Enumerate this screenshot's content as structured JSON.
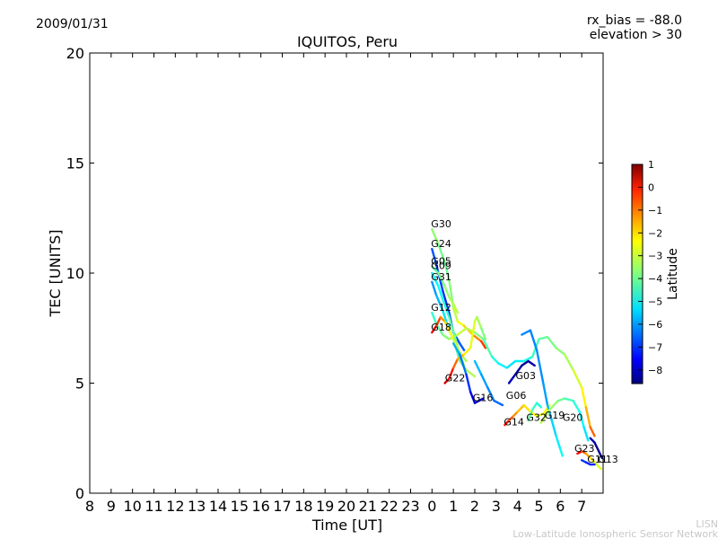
{
  "header": {
    "date": "2009/01/31",
    "rx_bias": "rx_bias = -88.0",
    "elevation": "elevation > 30"
  },
  "watermark": {
    "line1": "LISN",
    "line2": "Low-Latitude Ionospheric Sensor Network"
  },
  "chart_data": {
    "type": "line",
    "title": "IQUITOS, Peru",
    "xlabel": "Time [UT]",
    "ylabel": "TEC [UNITS]",
    "ylim": [
      0,
      20
    ],
    "yticks": [
      0,
      5,
      10,
      15,
      20
    ],
    "xticks": [
      "8",
      "9",
      "10",
      "11",
      "12",
      "13",
      "14",
      "15",
      "16",
      "17",
      "18",
      "19",
      "20",
      "21",
      "22",
      "23",
      "0",
      "1",
      "2",
      "3",
      "4",
      "5",
      "6",
      "7"
    ],
    "xaxis_note": "x axis is hours UT starting at 08 UT; ticks wrap from 23 to 0 at midnight",
    "grid": false,
    "colorbar": {
      "label": "Latitude",
      "range": [
        -8.6,
        1.0
      ],
      "ticks": [
        "1",
        "0",
        "−1",
        "−2",
        "−3",
        "−4",
        "−5",
        "−6",
        "−7",
        "−8"
      ],
      "tick_values": [
        1,
        0,
        -1,
        -2,
        -3,
        -4,
        -5,
        -6,
        -7,
        -8
      ],
      "colormap": "jet"
    },
    "series": [
      {
        "name": "G30",
        "points": [
          [
            0.0,
            12.0,
            -3.5
          ],
          [
            0.3,
            11.3,
            -3.8
          ],
          [
            0.6,
            10.5,
            -4.1
          ],
          [
            0.8,
            9.7,
            -4.0
          ],
          [
            1.0,
            8.4,
            -3.5
          ],
          [
            1.2,
            7.8,
            -2.9
          ],
          [
            1.5,
            7.6,
            -2.5
          ],
          [
            1.9,
            7.2,
            -1.8
          ],
          [
            2.3,
            6.9,
            -1.0
          ],
          [
            2.5,
            6.6,
            -0.4
          ]
        ]
      },
      {
        "name": "G24",
        "points": [
          [
            0.0,
            11.1,
            -6.5
          ],
          [
            0.2,
            10.4,
            -6.7
          ],
          [
            0.5,
            9.2,
            -6.9
          ],
          [
            0.8,
            8.2,
            -7.0
          ],
          [
            1.0,
            7.3,
            -6.8
          ],
          [
            1.3,
            6.8,
            -6.6
          ],
          [
            1.5,
            6.5,
            -6.5
          ]
        ]
      },
      {
        "name": "G05",
        "points": [
          [
            0.0,
            10.3,
            -4.3
          ],
          [
            0.3,
            10.0,
            -4.0
          ],
          [
            0.6,
            9.4,
            -3.7
          ],
          [
            0.8,
            8.9,
            -3.5
          ],
          [
            1.0,
            8.6,
            -3.3
          ],
          [
            1.2,
            8.2,
            -3.1
          ]
        ]
      },
      {
        "name": "G09",
        "points": [
          [
            0.0,
            10.0,
            -5.2
          ],
          [
            0.3,
            9.4,
            -5.0
          ],
          [
            0.5,
            8.8,
            -4.8
          ],
          [
            0.8,
            8.0,
            -4.4
          ],
          [
            1.1,
            7.0,
            -3.9
          ],
          [
            1.3,
            6.3,
            -3.6
          ],
          [
            1.5,
            5.8,
            -3.2
          ]
        ]
      },
      {
        "name": "G31",
        "points": [
          [
            0.0,
            9.6,
            -6.1
          ],
          [
            0.2,
            9.0,
            -5.9
          ],
          [
            0.5,
            8.3,
            -5.5
          ],
          [
            0.8,
            7.4,
            -5.0
          ],
          [
            1.0,
            7.0,
            -4.7
          ],
          [
            1.3,
            6.0,
            -3.9
          ],
          [
            1.6,
            5.6,
            -3.5
          ],
          [
            2.0,
            5.3,
            -3.2
          ]
        ]
      },
      {
        "name": "G12",
        "points": [
          [
            0.0,
            8.2,
            -4.7
          ],
          [
            0.2,
            7.7,
            -4.3
          ],
          [
            0.5,
            7.2,
            -3.9
          ],
          [
            0.8,
            7.0,
            -3.6
          ],
          [
            1.2,
            7.2,
            -3.3
          ],
          [
            1.6,
            7.5,
            -3.0
          ],
          [
            2.0,
            7.3,
            -3.5
          ],
          [
            2.4,
            7.0,
            -4.0
          ],
          [
            2.8,
            6.2,
            -4.5
          ],
          [
            3.1,
            5.9,
            -5.0
          ],
          [
            3.5,
            5.7,
            -5.2
          ],
          [
            3.9,
            6.0,
            -5.3
          ],
          [
            4.3,
            6.0,
            -5.0
          ],
          [
            4.7,
            6.2,
            -4.6
          ],
          [
            5.0,
            7.0,
            -4.2
          ],
          [
            5.4,
            7.1,
            -4.0
          ],
          [
            5.8,
            6.6,
            -3.8
          ],
          [
            6.2,
            6.3,
            -3.6
          ],
          [
            6.6,
            5.6,
            -3.2
          ],
          [
            7.0,
            4.8,
            -2.8
          ],
          [
            7.2,
            3.9,
            -2.2
          ],
          [
            7.4,
            3.0,
            -1.5
          ],
          [
            7.6,
            2.6,
            -0.8
          ]
        ]
      },
      {
        "name": "G18",
        "points": [
          [
            0.0,
            7.3,
            0.3
          ],
          [
            0.2,
            7.6,
            -0.3
          ],
          [
            0.4,
            8.0,
            -1.2
          ],
          [
            0.6,
            7.8,
            -2.0
          ],
          [
            0.8,
            7.4,
            -2.5
          ],
          [
            1.0,
            7.0,
            -2.9
          ],
          [
            1.3,
            6.4,
            -3.2
          ],
          [
            1.6,
            6.0,
            -3.5
          ]
        ]
      },
      {
        "name": "G22",
        "points": [
          [
            0.6,
            5.0,
            0.4
          ],
          [
            0.8,
            5.2,
            0.0
          ],
          [
            1.0,
            5.7,
            -0.8
          ],
          [
            1.2,
            6.1,
            -1.5
          ],
          [
            1.5,
            6.3,
            -2.2
          ],
          [
            1.8,
            6.6,
            -2.7
          ],
          [
            2.0,
            7.8,
            -3.0
          ],
          [
            2.1,
            8.0,
            -3.3
          ],
          [
            2.3,
            7.5,
            -3.6
          ],
          [
            2.5,
            7.0,
            -4.0
          ]
        ]
      },
      {
        "name": "G16",
        "points": [
          [
            1.0,
            6.8,
            -5.5
          ],
          [
            1.3,
            6.3,
            -6.0
          ],
          [
            1.6,
            5.4,
            -6.6
          ],
          [
            1.8,
            4.6,
            -7.3
          ],
          [
            2.0,
            4.1,
            -7.9
          ],
          [
            2.2,
            4.2,
            -8.1
          ],
          [
            2.4,
            4.3,
            -7.8
          ]
        ]
      },
      {
        "name": "G06",
        "points": [
          [
            2.0,
            6.0,
            -5.5
          ],
          [
            2.3,
            5.4,
            -5.8
          ],
          [
            2.6,
            4.8,
            -6.0
          ],
          [
            2.9,
            4.2,
            -6.3
          ],
          [
            3.3,
            4.0,
            -6.5
          ]
        ]
      },
      {
        "name": "G03",
        "points": [
          [
            3.6,
            5.0,
            -8.0
          ],
          [
            3.9,
            5.4,
            -8.2
          ],
          [
            4.2,
            5.8,
            -8.4
          ],
          [
            4.5,
            6.0,
            -8.3
          ],
          [
            4.8,
            5.8,
            -8.1
          ]
        ]
      },
      {
        "name": "G14",
        "points": [
          [
            3.4,
            3.1,
            0.2
          ],
          [
            3.6,
            3.3,
            -0.6
          ],
          [
            3.8,
            3.5,
            -1.3
          ],
          [
            4.0,
            3.7,
            -1.8
          ],
          [
            4.3,
            4.0,
            -2.2
          ],
          [
            4.6,
            3.7,
            -2.5
          ],
          [
            4.9,
            3.5,
            -2.7
          ],
          [
            5.2,
            3.6,
            -2.9
          ],
          [
            5.5,
            4.0,
            -2.5
          ]
        ]
      },
      {
        "name": "G32",
        "points": [
          [
            4.5,
            3.3,
            -4.0
          ],
          [
            4.7,
            3.8,
            -4.3
          ],
          [
            4.9,
            4.1,
            -4.6
          ],
          [
            5.1,
            3.9,
            -4.8
          ]
        ]
      },
      {
        "name": "G19",
        "points": [
          [
            4.2,
            7.2,
            -6.0
          ],
          [
            4.6,
            7.4,
            -6.2
          ],
          [
            4.9,
            6.5,
            -6.1
          ],
          [
            5.2,
            5.0,
            -6.0
          ],
          [
            5.4,
            4.0,
            -5.8
          ],
          [
            5.6,
            3.3,
            -5.5
          ],
          [
            5.8,
            2.6,
            -5.3
          ],
          [
            6.0,
            2.0,
            -5.0
          ],
          [
            6.1,
            1.7,
            -4.8
          ]
        ]
      },
      {
        "name": "G20",
        "points": [
          [
            5.1,
            3.2,
            -3.0
          ],
          [
            5.5,
            3.8,
            -3.4
          ],
          [
            5.9,
            4.2,
            -3.8
          ],
          [
            6.2,
            4.3,
            -4.1
          ],
          [
            6.6,
            4.2,
            -4.5
          ],
          [
            6.9,
            3.7,
            -4.8
          ],
          [
            7.1,
            3.0,
            -5.1
          ],
          [
            7.3,
            2.4,
            -5.4
          ]
        ]
      },
      {
        "name": "G23",
        "points": [
          [
            6.8,
            1.8,
            0.2
          ],
          [
            7.0,
            1.9,
            -0.6
          ],
          [
            7.2,
            1.8,
            -1.4
          ],
          [
            7.4,
            1.6,
            -2.1
          ],
          [
            7.6,
            1.4,
            -2.7
          ],
          [
            7.9,
            1.1,
            -3.2
          ]
        ]
      },
      {
        "name": "G11",
        "points": [
          [
            7.0,
            1.5,
            -6.8
          ],
          [
            7.2,
            1.4,
            -7.0
          ],
          [
            7.4,
            1.3,
            -7.2
          ],
          [
            7.6,
            1.3,
            -7.0
          ]
        ]
      },
      {
        "name": "G13",
        "points": [
          [
            7.4,
            2.5,
            -8.1
          ],
          [
            7.6,
            2.3,
            -8.3
          ],
          [
            7.8,
            1.9,
            -8.5
          ],
          [
            7.95,
            1.6,
            -8.3
          ]
        ]
      }
    ],
    "labels": [
      {
        "text": "G30",
        "x": 0.0,
        "y": 12.0
      },
      {
        "text": "G24",
        "x": 0.0,
        "y": 11.1
      },
      {
        "text": "G05",
        "x": 0.0,
        "y": 10.3
      },
      {
        "text": "G09",
        "x": 0.0,
        "y": 10.1
      },
      {
        "text": "G31",
        "x": 0.0,
        "y": 9.6
      },
      {
        "text": "G12",
        "x": 0.0,
        "y": 8.2
      },
      {
        "text": "G18",
        "x": 0.0,
        "y": 7.3
      },
      {
        "text": "G22",
        "x": 0.65,
        "y": 5.0
      },
      {
        "text": "G16",
        "x": 1.95,
        "y": 4.1
      },
      {
        "text": "G06",
        "x": 3.5,
        "y": 4.2
      },
      {
        "text": "G03",
        "x": 3.95,
        "y": 5.1
      },
      {
        "text": "G14",
        "x": 3.4,
        "y": 3.0
      },
      {
        "text": "G32",
        "x": 4.45,
        "y": 3.2
      },
      {
        "text": "G19",
        "x": 5.3,
        "y": 3.3
      },
      {
        "text": "G20",
        "x": 6.15,
        "y": 3.2
      },
      {
        "text": "G23",
        "x": 6.7,
        "y": 1.8
      },
      {
        "text": "G11",
        "x": 7.3,
        "y": 1.3
      },
      {
        "text": "G13",
        "x": 7.8,
        "y": 1.3
      }
    ]
  }
}
